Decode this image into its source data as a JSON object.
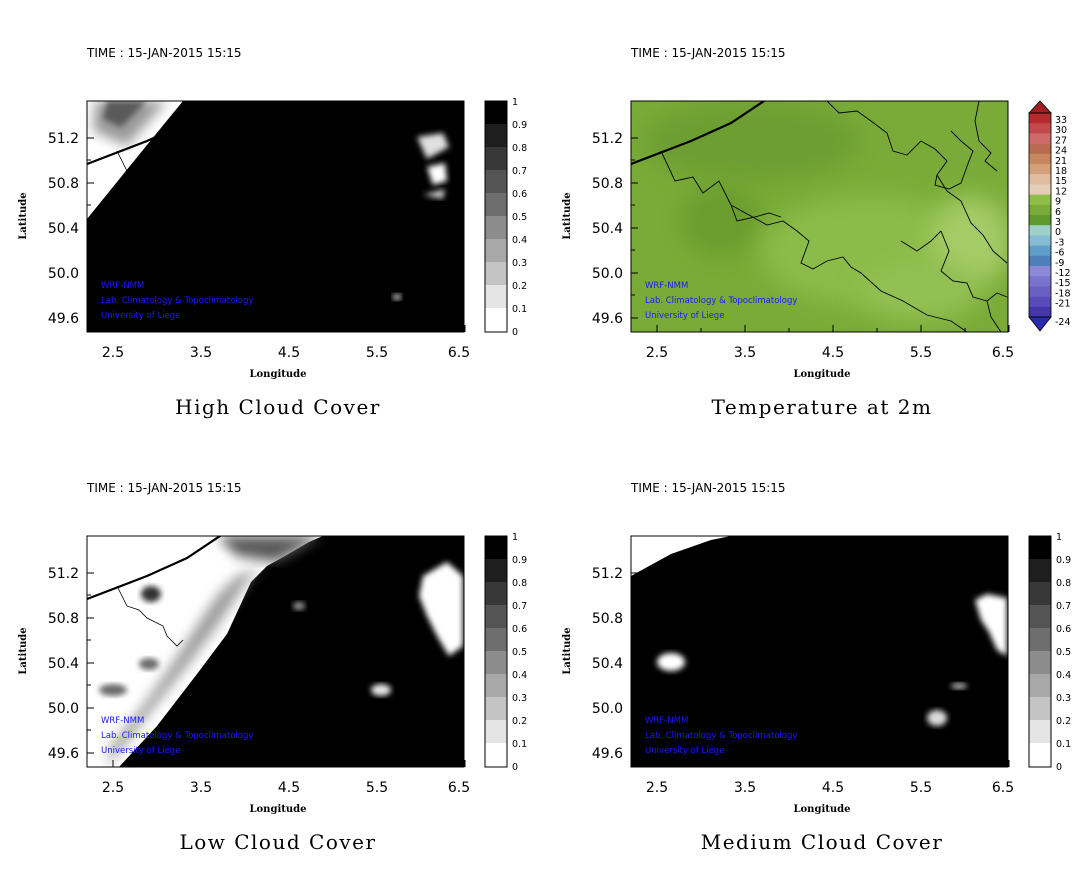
{
  "figure": {
    "time_label": "TIME : 15-JAN-2015 15:15",
    "xlabel": "Longitude",
    "ylabel": "Latitude",
    "x_ticks": [
      "2.5",
      "3.5",
      "4.5",
      "5.5",
      "6.5"
    ],
    "y_ticks": [
      "51.2",
      "50.8",
      "50.4",
      "50.0",
      "49.6"
    ],
    "credits": [
      "WRF-NMM",
      "Lab. Climatology & Topoclimatology",
      "University of Liege"
    ]
  },
  "panels": [
    {
      "id": "high-cloud-cover",
      "title": "High Cloud Cover",
      "colorbar_type": "gray",
      "colorbar_labels": [
        "1",
        "0.9",
        "0.8",
        "0.7",
        "0.6",
        "0.5",
        "0.4",
        "0.3",
        "0.2",
        "0.1",
        "0"
      ],
      "field_summary": "mostly 1.0 (full cover); clear areas in the far north-west corner and near 6.2E 51.0N"
    },
    {
      "id": "temperature-2m",
      "title": "Temperature at 2m",
      "colorbar_type": "rainbow",
      "colorbar_labels": [
        "33",
        "30",
        "27",
        "24",
        "21",
        "18",
        "15",
        "12",
        "9",
        "6",
        "3",
        "0",
        "-3",
        "-6",
        "-9",
        "-12",
        "-15",
        "-18",
        "-21",
        "-24"
      ],
      "field_summary": "uniform green, about 6-9 degrees over the whole domain"
    },
    {
      "id": "low-cloud-cover",
      "title": "Low Cloud Cover",
      "colorbar_type": "gray",
      "colorbar_labels": [
        "1",
        "0.9",
        "0.8",
        "0.7",
        "0.6",
        "0.5",
        "0.4",
        "0.3",
        "0.2",
        "0.1",
        "0"
      ],
      "field_summary": "clear (0) along the north-west coast and the eastern edge; full cover elsewhere"
    },
    {
      "id": "medium-cloud-cover",
      "title": "Medium Cloud Cover",
      "colorbar_type": "gray",
      "colorbar_labels": [
        "1",
        "0.9",
        "0.8",
        "0.7",
        "0.6",
        "0.5",
        "0.4",
        "0.3",
        "0.2",
        "0.1",
        "0"
      ],
      "field_summary": "mostly 1.0; clear patches near 2.6E 50.3N and along the eastern edge"
    }
  ]
}
